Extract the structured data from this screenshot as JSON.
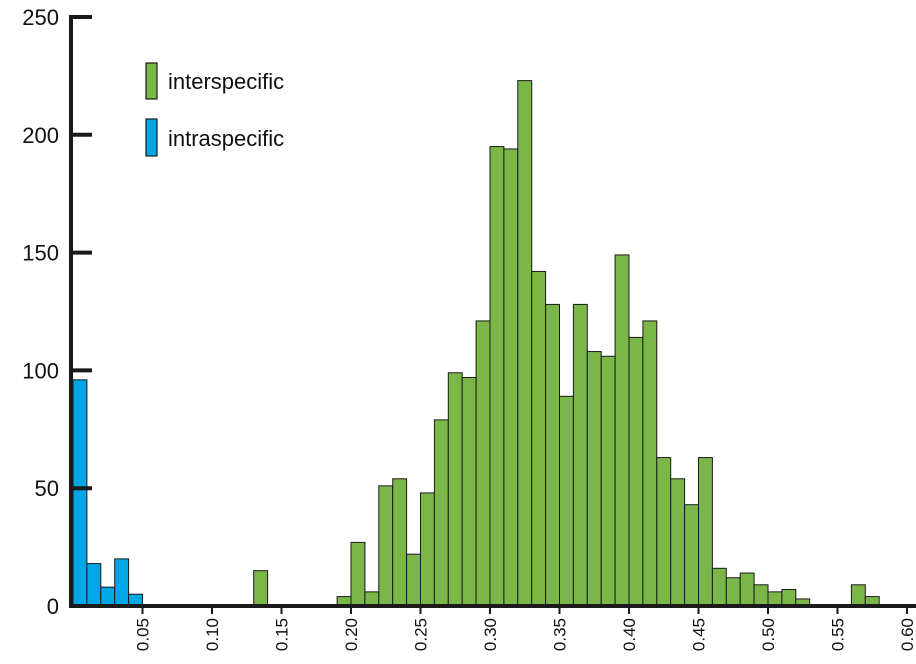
{
  "chart_data": {
    "type": "bar",
    "bin_width": 0.01,
    "xlim": [
      0.0,
      0.6
    ],
    "ylim": [
      0,
      250
    ],
    "x_ticks": [
      "0.05",
      "0.10",
      "0.15",
      "0.20",
      "0.25",
      "0.30",
      "0.35",
      "0.40",
      "0.45",
      "0.50",
      "0.55",
      "0.60"
    ],
    "y_ticks": [
      "0",
      "50",
      "100",
      "150",
      "200",
      "250"
    ],
    "x_tick_values": [
      0.05,
      0.1,
      0.15,
      0.2,
      0.25,
      0.3,
      0.35,
      0.4,
      0.45,
      0.5,
      0.55,
      0.6
    ],
    "y_tick_values": [
      0,
      50,
      100,
      150,
      200,
      250
    ],
    "legend_position": "top-left",
    "grid": false,
    "series": [
      {
        "name": "interspecific",
        "color": "#7ab648",
        "bins": [
          {
            "x": 0.13,
            "count": 15
          },
          {
            "x": 0.19,
            "count": 4
          },
          {
            "x": 0.2,
            "count": 27
          },
          {
            "x": 0.21,
            "count": 6
          },
          {
            "x": 0.22,
            "count": 51
          },
          {
            "x": 0.23,
            "count": 54
          },
          {
            "x": 0.24,
            "count": 22
          },
          {
            "x": 0.25,
            "count": 48
          },
          {
            "x": 0.26,
            "count": 79
          },
          {
            "x": 0.27,
            "count": 99
          },
          {
            "x": 0.28,
            "count": 97
          },
          {
            "x": 0.29,
            "count": 121
          },
          {
            "x": 0.3,
            "count": 195
          },
          {
            "x": 0.31,
            "count": 194
          },
          {
            "x": 0.32,
            "count": 223
          },
          {
            "x": 0.33,
            "count": 142
          },
          {
            "x": 0.34,
            "count": 128
          },
          {
            "x": 0.35,
            "count": 89
          },
          {
            "x": 0.36,
            "count": 128
          },
          {
            "x": 0.37,
            "count": 108
          },
          {
            "x": 0.38,
            "count": 106
          },
          {
            "x": 0.39,
            "count": 149
          },
          {
            "x": 0.4,
            "count": 114
          },
          {
            "x": 0.41,
            "count": 121
          },
          {
            "x": 0.42,
            "count": 63
          },
          {
            "x": 0.43,
            "count": 54
          },
          {
            "x": 0.44,
            "count": 43
          },
          {
            "x": 0.45,
            "count": 63
          },
          {
            "x": 0.46,
            "count": 16
          },
          {
            "x": 0.47,
            "count": 12
          },
          {
            "x": 0.48,
            "count": 14
          },
          {
            "x": 0.49,
            "count": 9
          },
          {
            "x": 0.5,
            "count": 6
          },
          {
            "x": 0.51,
            "count": 7
          },
          {
            "x": 0.52,
            "count": 3
          },
          {
            "x": 0.56,
            "count": 9
          },
          {
            "x": 0.57,
            "count": 4
          }
        ]
      },
      {
        "name": "intraspecific",
        "color": "#00a6e6",
        "bins": [
          {
            "x": 0.0,
            "count": 96
          },
          {
            "x": 0.01,
            "count": 18
          },
          {
            "x": 0.02,
            "count": 8
          },
          {
            "x": 0.03,
            "count": 20
          },
          {
            "x": 0.04,
            "count": 5
          }
        ]
      }
    ]
  }
}
